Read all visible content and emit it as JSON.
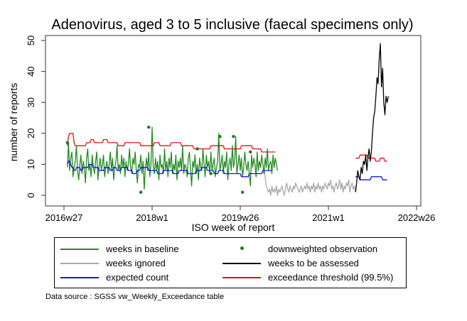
{
  "colors": {
    "baseline": "#228b22",
    "downweighted": "#1a7a1a",
    "ignored": "#a8a8a8",
    "assessed": "#000000",
    "expected": "#1515e0",
    "threshold": "#e01010"
  },
  "legend": [
    {
      "key": "baseline",
      "label": "weeks in baseline",
      "style": "line"
    },
    {
      "key": "downweighted",
      "label": "downweighted observation",
      "style": "dot"
    },
    {
      "key": "ignored",
      "label": "weeks ignored",
      "style": "line"
    },
    {
      "key": "assessed",
      "label": "weeks to be assessed",
      "style": "line"
    },
    {
      "key": "expected",
      "label": "expected count",
      "style": "line"
    },
    {
      "key": "threshold",
      "label": "exceedance threshold (99.5%)",
      "style": "line"
    }
  ],
  "source_note": "Data source : SGSS vw_Weekly_Exceedance table",
  "chart_data": {
    "type": "line",
    "title": "Adenovirus, aged 3 to 5 inclusive (faecal specimens only)",
    "xlabel": "ISO week of report",
    "ylabel": "number of reports",
    "x_unit": "ISO week index (0 = 2016w27, 78 = 2018w1, 156 = 2019w26, 234 = 2021w1, 312 = 2022w26)",
    "xlim": [
      0,
      312
    ],
    "ylim": [
      0,
      50
    ],
    "yticks": [
      0,
      10,
      20,
      30,
      40,
      50
    ],
    "xticks": [
      {
        "value": 0,
        "label": "2016w27"
      },
      {
        "value": 78,
        "label": "2018w1"
      },
      {
        "value": 156,
        "label": "2019w26"
      },
      {
        "value": 234,
        "label": "2021w1"
      },
      {
        "value": 312,
        "label": "2022w26"
      }
    ],
    "grid": false,
    "legend_position": "bottom",
    "series": [
      {
        "key": "baseline",
        "name": "weeks in baseline",
        "x_start": 3,
        "values": [
          9,
          17,
          8,
          12,
          14,
          6,
          9,
          11,
          16,
          8,
          5,
          10,
          13,
          7,
          11,
          9,
          4,
          12,
          15,
          8,
          10,
          6,
          13,
          9,
          7,
          11,
          14,
          5,
          9,
          12,
          8,
          10,
          13,
          6,
          9,
          11,
          7,
          10,
          14,
          8,
          12,
          5,
          9,
          11,
          16,
          8,
          10,
          7,
          13,
          9,
          12,
          6,
          11,
          8,
          10,
          15,
          9,
          7,
          12,
          10,
          14,
          8,
          4,
          10,
          9,
          13,
          7,
          11,
          2,
          9,
          12,
          8,
          14,
          6,
          10,
          22,
          9,
          7,
          12,
          8,
          11,
          5,
          13,
          9,
          10,
          7,
          15,
          8,
          11,
          6,
          12,
          9,
          14,
          7,
          10,
          8,
          13,
          5,
          11,
          9,
          12,
          8,
          16,
          7,
          10,
          9,
          6,
          12,
          14,
          8,
          3,
          11,
          9,
          13,
          7,
          10,
          5,
          12,
          9,
          8,
          15,
          10,
          6,
          13,
          9,
          11,
          7,
          14,
          8,
          10,
          12,
          6,
          9,
          11,
          20,
          8,
          10,
          13,
          7,
          11,
          9,
          14,
          5,
          10,
          12,
          8,
          16,
          9,
          11,
          19,
          7,
          10,
          13,
          8,
          12,
          6,
          9,
          14,
          10,
          8,
          11,
          7,
          3,
          13,
          9,
          12,
          10,
          6,
          14,
          8,
          11,
          9,
          13,
          10,
          7,
          12,
          9,
          15,
          8,
          10,
          11,
          7,
          13,
          9,
          12,
          10,
          8
        ]
      },
      {
        "key": "downweighted",
        "name": "downweighted observation",
        "style": "dot",
        "points": [
          [
            3,
            17
          ],
          [
            68,
            1
          ],
          [
            75,
            22
          ],
          [
            118,
            15
          ],
          [
            130,
            7
          ],
          [
            138,
            19
          ],
          [
            150,
            19
          ],
          [
            158,
            1
          ],
          [
            165,
            14
          ]
        ]
      },
      {
        "key": "ignored",
        "name": "weeks ignored",
        "x_start": 177,
        "values": [
          9,
          6,
          3,
          2,
          1,
          2,
          0,
          3,
          1,
          2,
          1,
          3,
          0,
          2,
          1,
          2,
          3,
          1,
          0,
          2,
          4,
          2,
          1,
          3,
          2,
          1,
          3,
          2,
          4,
          3,
          2,
          1,
          2,
          3,
          1,
          2,
          3,
          2,
          4,
          2,
          3,
          1,
          3,
          2,
          4,
          1,
          3,
          2,
          4,
          2,
          3,
          1,
          3,
          2,
          4,
          3,
          2,
          4,
          3,
          5,
          2,
          3,
          1,
          3,
          4,
          2,
          3,
          5,
          2,
          4,
          1,
          3,
          2,
          4,
          3,
          5,
          1,
          3,
          4,
          2,
          3,
          1
        ]
      },
      {
        "key": "assessed",
        "name": "weeks to be assessed",
        "x_start": 258,
        "values": [
          1,
          4,
          8,
          6,
          5,
          9,
          7,
          11,
          10,
          13,
          8,
          12,
          15,
          11,
          14,
          20,
          25,
          27,
          32,
          38,
          36,
          44,
          49,
          35,
          41,
          30,
          26,
          32,
          30,
          32
        ]
      },
      {
        "key": "expected",
        "name": "expected count",
        "segments": [
          {
            "x_start": 3,
            "values": [
              10,
              11,
              11,
              10,
              9,
              9,
              8,
              8,
              9,
              9,
              9,
              9,
              8,
              8,
              9,
              9,
              9,
              9,
              9,
              10,
              10,
              10,
              10,
              9,
              9,
              9,
              9,
              9,
              8,
              8,
              8,
              8,
              8,
              9,
              9,
              9,
              9,
              9,
              8,
              8,
              8,
              9,
              9,
              9,
              8,
              8,
              8,
              8,
              9,
              9,
              9,
              9,
              9,
              9,
              8,
              8,
              8,
              8,
              7,
              7,
              7,
              7,
              8,
              8,
              8,
              9,
              9,
              9,
              9,
              9,
              9,
              9,
              8,
              8,
              8,
              8,
              8,
              8,
              8,
              8,
              7,
              7,
              7,
              7,
              7,
              8,
              8,
              8,
              8,
              8,
              8,
              8,
              8,
              8,
              7,
              7,
              7,
              7,
              7,
              8,
              8,
              8,
              8,
              8,
              8,
              8,
              8,
              7,
              7,
              7,
              7,
              7,
              7,
              7,
              8,
              8,
              8,
              8,
              8,
              9,
              9,
              9,
              9,
              9,
              8,
              8,
              8,
              8,
              8,
              8,
              7,
              7,
              7,
              7,
              8,
              8,
              8,
              8,
              8,
              7,
              7,
              7,
              7,
              7,
              7,
              7,
              7,
              7,
              7,
              7,
              7,
              7,
              7,
              7,
              6,
              6,
              6,
              6,
              6,
              6,
              6,
              7,
              7,
              7,
              7,
              7,
              7,
              7,
              7,
              7,
              7,
              7,
              7,
              8,
              8,
              8,
              8,
              8,
              8,
              8,
              8,
              8
            ]
          },
          {
            "x_start": 258,
            "values": [
              6,
              6,
              6,
              6,
              5,
              5,
              5,
              5,
              5,
              5,
              5,
              5,
              5,
              5,
              6,
              6,
              6,
              6,
              6,
              6,
              6,
              6,
              6,
              6,
              5,
              5,
              5,
              5,
              5
            ]
          }
        ]
      },
      {
        "key": "threshold",
        "name": "exceedance threshold (99.5%)",
        "segments": [
          {
            "x_start": 3,
            "values": [
              16,
              19,
              20,
              20,
              20,
              20,
              17,
              16,
              16,
              16,
              16,
              16,
              16,
              16,
              16,
              16,
              16,
              17,
              17,
              17,
              17,
              18,
              18,
              18,
              17,
              17,
              17,
              17,
              17,
              17,
              17,
              17,
              18,
              18,
              18,
              18,
              17,
              17,
              17,
              17,
              17,
              17,
              17,
              17,
              17,
              16,
              16,
              16,
              16,
              16,
              16,
              17,
              17,
              17,
              17,
              17,
              17,
              17,
              17,
              17,
              17,
              17,
              17,
              17,
              17,
              16,
              16,
              16,
              16,
              16,
              16,
              16,
              16,
              16,
              16,
              16,
              16,
              17,
              17,
              17,
              17,
              17,
              16,
              16,
              16,
              16,
              16,
              16,
              16,
              16,
              16,
              16,
              17,
              17,
              17,
              17,
              17,
              17,
              17,
              17,
              17,
              16,
              16,
              16,
              16,
              16,
              16,
              16,
              16,
              16,
              16,
              16,
              15,
              15,
              15,
              15,
              15,
              15,
              15,
              15,
              15,
              15,
              15,
              15,
              15,
              15,
              15,
              16,
              16,
              16,
              16,
              16,
              16,
              16,
              16,
              16,
              16,
              16,
              16,
              15,
              15,
              15,
              15,
              15,
              15,
              15,
              15,
              15,
              15,
              15,
              15,
              15,
              15,
              15,
              16,
              16,
              16,
              16,
              16,
              16,
              16,
              16,
              16,
              16,
              15,
              15,
              15,
              15,
              15,
              15,
              15,
              15,
              14,
              14,
              14,
              14,
              14,
              14,
              14,
              14,
              14,
              14,
              14,
              14,
              14
            ]
          },
          {
            "x_start": 258,
            "values": [
              12,
              12,
              12,
              12,
              13,
              13,
              13,
              13,
              13,
              13,
              13,
              12,
              12,
              12,
              12,
              12,
              12,
              12,
              11,
              11,
              11,
              11,
              12,
              12,
              12,
              12,
              11,
              11,
              11
            ]
          }
        ]
      }
    ]
  }
}
